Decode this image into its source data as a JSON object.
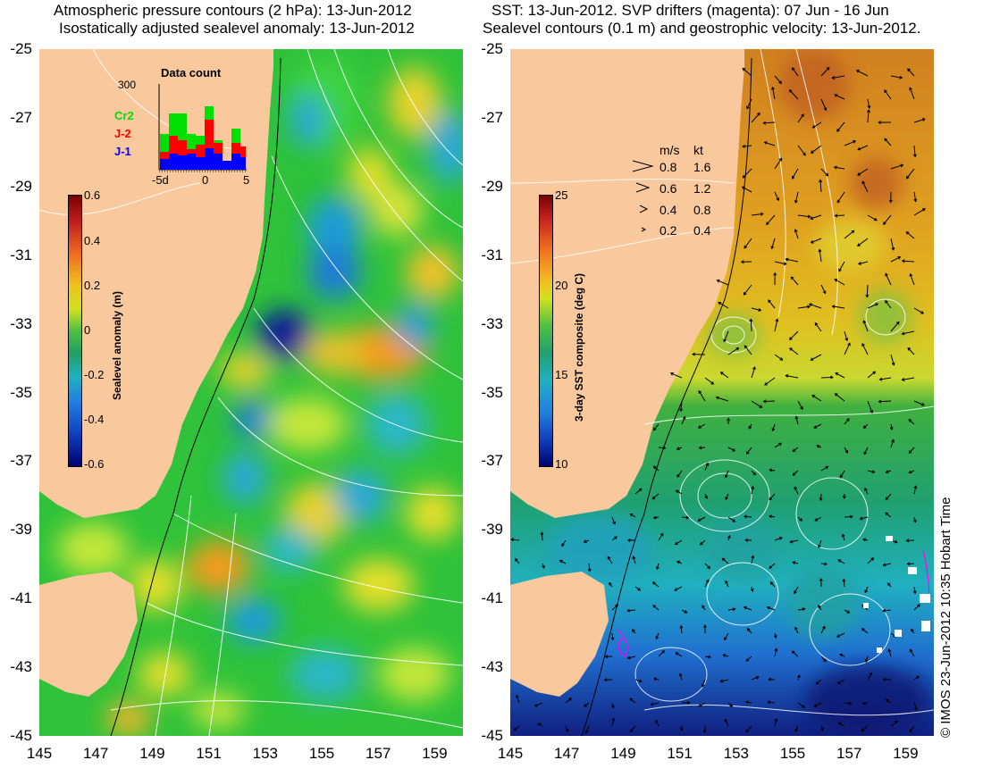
{
  "left_panel": {
    "title_line1": "Atmospheric pressure contours (2 hPa): 13-Jun-2012",
    "title_line2": "Isostatically adjusted sealevel anomaly: 13-Jun-2012",
    "y_ticks": [
      "-25",
      "-27",
      "-29",
      "-31",
      "-33",
      "-35",
      "-37",
      "-39",
      "-41",
      "-43",
      "-45"
    ],
    "x_ticks": [
      "145",
      "147",
      "149",
      "151",
      "153",
      "155",
      "157",
      "159"
    ],
    "colorbar": {
      "label": "Sealevel anomaly (m)",
      "ticks": [
        "0.6",
        "0.4",
        "0.2",
        "0",
        "-0.2",
        "-0.4",
        "-0.6"
      ],
      "range": [
        -0.6,
        0.6
      ]
    },
    "histogram": {
      "title": "Data count",
      "y_max_label": "300",
      "x_ticks": [
        "-5d",
        "0",
        "5"
      ],
      "legend": [
        {
          "name": "Cr2",
          "color": "#00e000"
        },
        {
          "name": "J-2",
          "color": "#ff0000"
        },
        {
          "name": "J-1",
          "color": "#0000ff"
        }
      ]
    }
  },
  "right_panel": {
    "title_line1": "SST: 13-Jun-2012. SVP drifters (magenta): 07 Jun - 16 Jun",
    "title_line2": "Sealevel contours (0.1 m) and geostrophic velocity: 13-Jun-2012.",
    "y_ticks": [
      "-25",
      "-27",
      "-29",
      "-31",
      "-33",
      "-35",
      "-37",
      "-39",
      "-41",
      "-43",
      "-45"
    ],
    "x_ticks": [
      "145",
      "147",
      "149",
      "151",
      "153",
      "155",
      "157",
      "159"
    ],
    "colorbar": {
      "label": "3-day SST composite (deg C)",
      "ticks": [
        "25",
        "20",
        "15",
        "10"
      ],
      "range": [
        10,
        25
      ]
    },
    "velocity_legend": {
      "header_ms": "m/s",
      "header_kt": "kt",
      "rows": [
        {
          "ms": "0.8",
          "kt": "1.6"
        },
        {
          "ms": "0.6",
          "kt": "1.2"
        },
        {
          "ms": "0.4",
          "kt": "0.8"
        },
        {
          "ms": "0.2",
          "kt": "0.4"
        }
      ]
    }
  },
  "credit": "© IMOS 23-Jun-2012 10:35 Hobart Time",
  "colors": {
    "land": "#f9c89c",
    "drifter": "#ff00ff",
    "contour": "#ffffff"
  }
}
